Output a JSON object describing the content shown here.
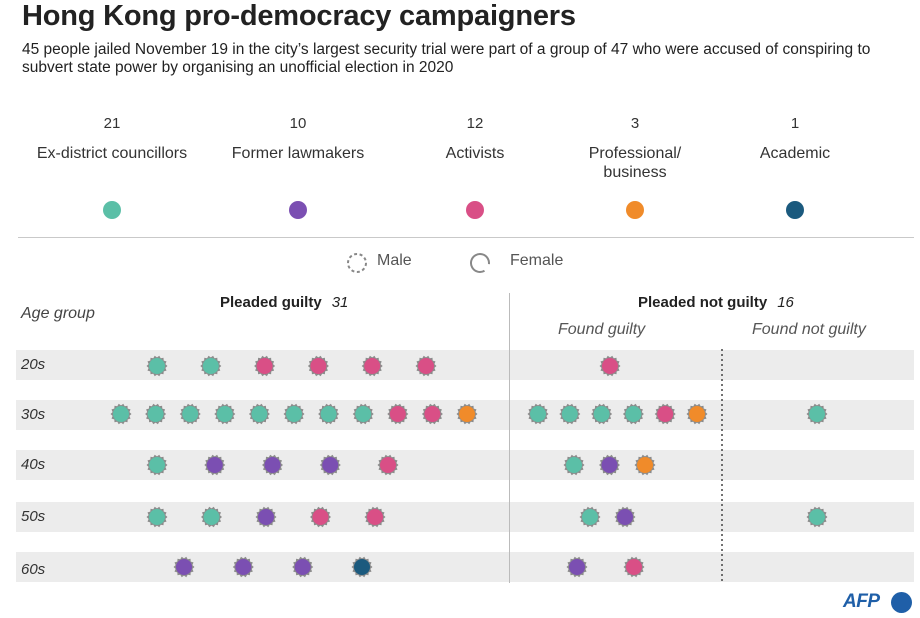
{
  "title": "Hong Kong pro-democracy campaigners",
  "subtitle": "45 people jailed November 19 in the city’s largest security trial were part of a group of 47 who were accused of conspiring to subvert state power by organising an unofficial election in 2020",
  "categories": [
    {
      "count": "21",
      "label": "Ex-district councillors",
      "color": "#5bbfa7"
    },
    {
      "count": "10",
      "label": "Former lawmakers",
      "color": "#7b4fb2"
    },
    {
      "count": "12",
      "label": "Activists",
      "color": "#d94f86"
    },
    {
      "count": "3",
      "label": "Professional/ business",
      "color": "#f08b2a"
    },
    {
      "count": "1",
      "label": "Academic",
      "color": "#1b5a7e"
    }
  ],
  "legend": {
    "male": "Male",
    "female": "Female"
  },
  "headers": {
    "age_group": "Age group",
    "pleaded_guilty": "Pleaded guilty",
    "pleaded_guilty_count": "31",
    "pleaded_not_guilty": "Pleaded not guilty",
    "pleaded_not_guilty_count": "16",
    "found_guilty": "Found guilty",
    "found_not_guilty": "Found not guilty"
  },
  "chart_data": {
    "type": "dot-matrix",
    "title": "Hong Kong pro-democracy campaigners",
    "age_groups": [
      "20s",
      "30s",
      "40s",
      "50s",
      "60s"
    ],
    "columns": [
      "Pleaded guilty",
      "Found guilty",
      "Found not guilty"
    ],
    "category_keys": {
      "D": "Ex-district councillors",
      "L": "Former lawmakers",
      "A": "Activists",
      "P": "Professional/ business",
      "C": "Academic"
    },
    "rows": [
      {
        "age": "20s",
        "pleaded_guilty": [
          "D",
          "D",
          "A",
          "A",
          "A",
          "A"
        ],
        "found_guilty": [
          "A"
        ],
        "found_not_guilty": []
      },
      {
        "age": "30s",
        "pleaded_guilty": [
          "D",
          "D",
          "D",
          "D",
          "D",
          "D",
          "D",
          "D",
          "A",
          "A",
          "P"
        ],
        "found_guilty": [
          "D",
          "D",
          "D",
          "D",
          "A",
          "P"
        ],
        "found_not_guilty": [
          "D"
        ]
      },
      {
        "age": "40s",
        "pleaded_guilty": [
          "D",
          "L",
          "L",
          "L",
          "A"
        ],
        "found_guilty": [
          "D",
          "L",
          "P"
        ],
        "found_not_guilty": []
      },
      {
        "age": "50s",
        "pleaded_guilty": [
          "D",
          "D",
          "L",
          "A",
          "A"
        ],
        "found_guilty": [
          "D",
          "L"
        ],
        "found_not_guilty": [
          "D"
        ]
      },
      {
        "age": "60s",
        "pleaded_guilty": [
          "L",
          "L",
          "L",
          "C"
        ],
        "found_guilty": [
          "L",
          "A"
        ],
        "found_not_guilty": []
      }
    ]
  },
  "source": "AFP"
}
